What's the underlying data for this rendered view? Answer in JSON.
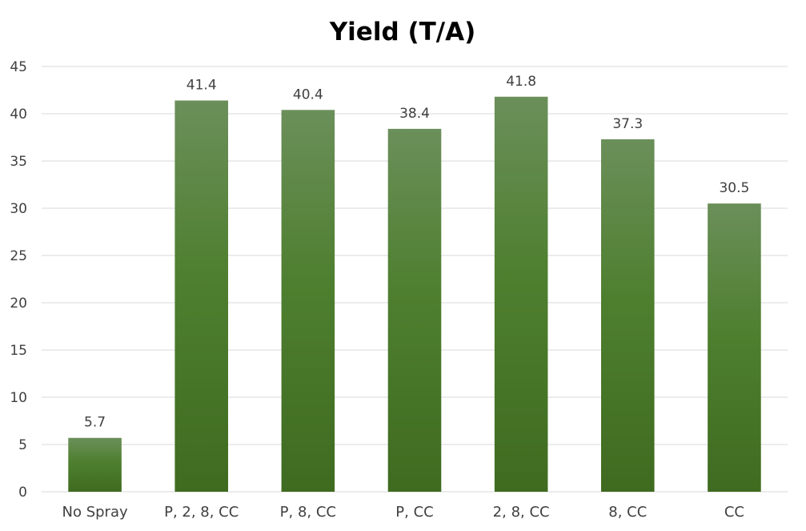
{
  "chart_data": {
    "type": "bar",
    "title": "Yield (T/A)",
    "xlabel": "",
    "ylabel": "",
    "categories": [
      "No Spray",
      "P, 2, 8, CC",
      "P, 8, CC",
      "P, CC",
      "2, 8, CC",
      "8, CC",
      "CC"
    ],
    "values": [
      5.7,
      41.4,
      40.4,
      38.4,
      41.8,
      37.3,
      30.5
    ],
    "value_labels": [
      "5.7",
      "41.4",
      "40.4",
      "38.4",
      "41.8",
      "37.3",
      "30.5"
    ],
    "ylim": [
      0,
      45
    ],
    "yticks": [
      0,
      5,
      10,
      15,
      20,
      25,
      30,
      35,
      40,
      45
    ],
    "grid": true,
    "legend": "none",
    "colors": {
      "bar_top": "#6b8f5a",
      "bar_mid": "#4e7f2f",
      "bar_bottom": "#3f6b20",
      "grid": "#d9d9d9",
      "text": "#404040"
    }
  }
}
